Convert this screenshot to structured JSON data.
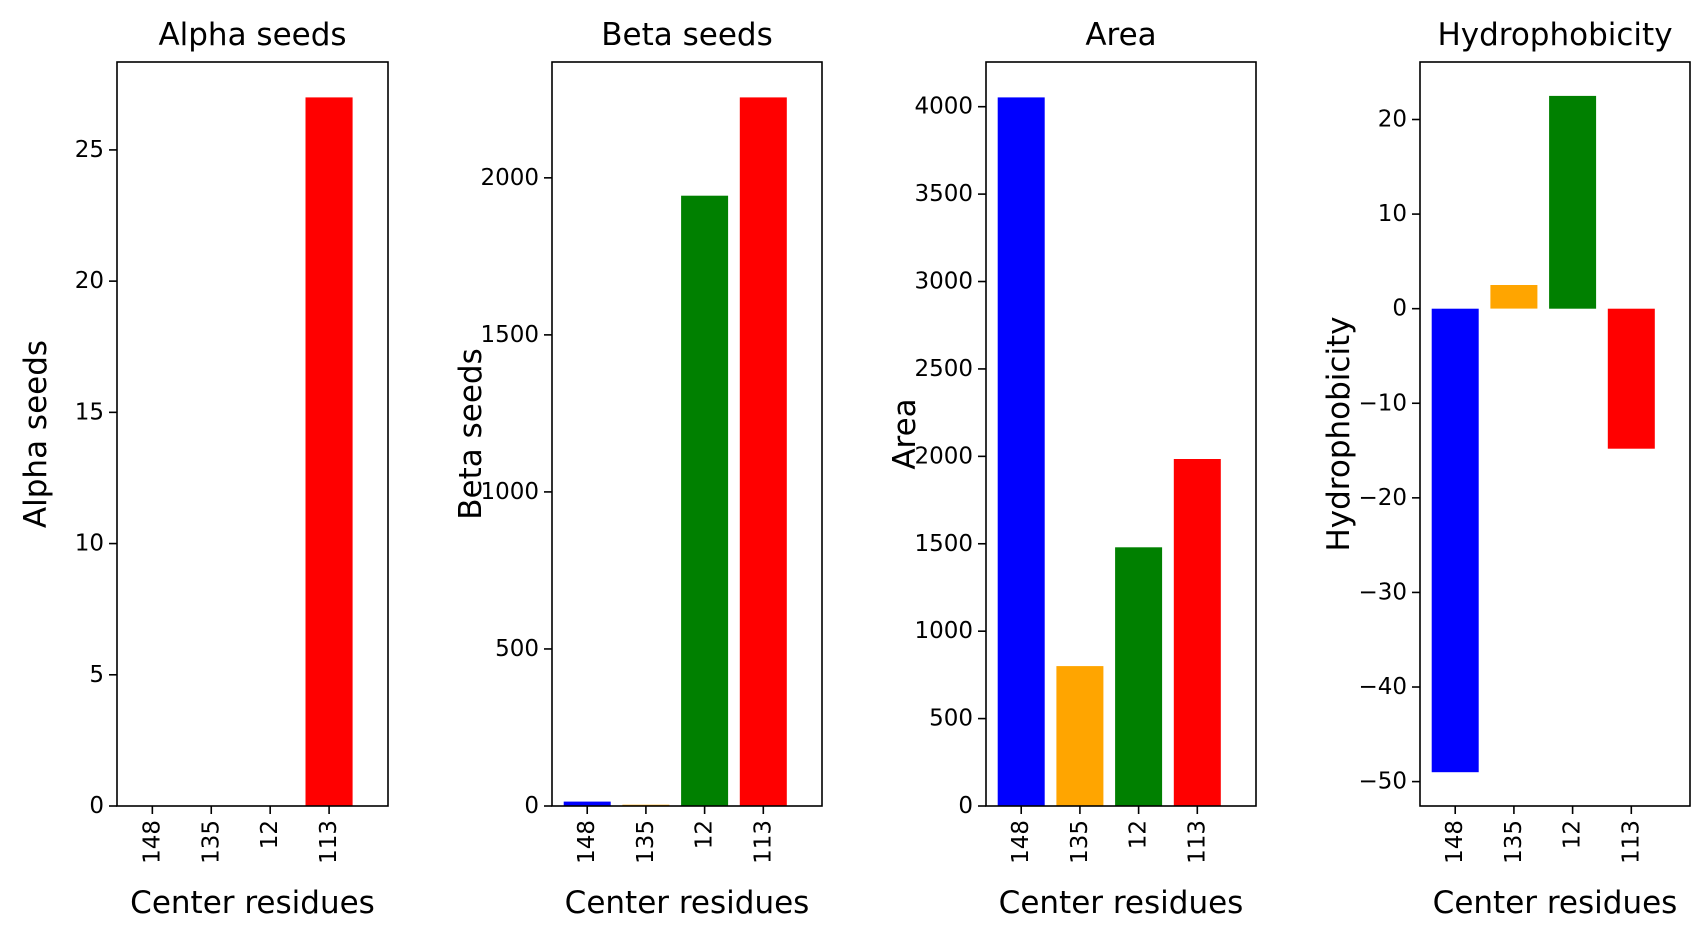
{
  "figure": {
    "background": "#ffffff"
  },
  "chart_data": [
    {
      "type": "bar",
      "title": "Alpha seeds",
      "xlabel": "Center residues",
      "ylabel": "Alpha seeds",
      "categories": [
        "148",
        "135",
        "12",
        "113"
      ],
      "values": [
        0,
        0,
        0,
        27
      ],
      "colors": [
        "#0000ff",
        "#ffa500",
        "#008000",
        "#ff0000"
      ],
      "ylim": [
        0,
        28.35
      ],
      "yticks": [
        0,
        5,
        10,
        15,
        20,
        25
      ],
      "ytick_labels": [
        "0",
        "5",
        "10",
        "15",
        "20",
        "25"
      ],
      "grid": false,
      "legend": "none"
    },
    {
      "type": "bar",
      "title": "Beta seeds",
      "xlabel": "Center residues",
      "ylabel": "Beta seeds",
      "categories": [
        "148",
        "135",
        "12",
        "113"
      ],
      "values": [
        14,
        4,
        1943,
        2256
      ],
      "colors": [
        "#0000ff",
        "#ffa500",
        "#008000",
        "#ff0000"
      ],
      "ylim": [
        0,
        2368.8
      ],
      "yticks": [
        0,
        500,
        1000,
        1500,
        2000
      ],
      "ytick_labels": [
        "0",
        "500",
        "1000",
        "1500",
        "2000"
      ],
      "grid": false,
      "legend": "none"
    },
    {
      "type": "bar",
      "title": "Area",
      "xlabel": "Center residues",
      "ylabel": "Area",
      "categories": [
        "148",
        "135",
        "12",
        "113"
      ],
      "values": [
        4053,
        800,
        1480,
        1985
      ],
      "colors": [
        "#0000ff",
        "#ffa500",
        "#008000",
        "#ff0000"
      ],
      "ylim": [
        0,
        4255.65
      ],
      "yticks": [
        0,
        500,
        1000,
        1500,
        2000,
        2500,
        3000,
        3500,
        4000
      ],
      "ytick_labels": [
        "0",
        "500",
        "1000",
        "1500",
        "2000",
        "2500",
        "3000",
        "3500",
        "4000"
      ],
      "grid": false,
      "legend": "none"
    },
    {
      "type": "bar",
      "title": "Hydrophobicity",
      "xlabel": "Center residues",
      "ylabel": "Hydrophobicity",
      "categories": [
        "148",
        "135",
        "12",
        "113"
      ],
      "values": [
        -49,
        2.5,
        22.5,
        -14.8
      ],
      "colors": [
        "#0000ff",
        "#ffa500",
        "#008000",
        "#ff0000"
      ],
      "ylim": [
        -52.58,
        26.08
      ],
      "yticks": [
        -50,
        -40,
        -30,
        -20,
        -10,
        0,
        10,
        20
      ],
      "ytick_labels": [
        "−50",
        "−40",
        "−30",
        "−20",
        "−10",
        "0",
        "10",
        "20"
      ],
      "grid": false,
      "legend": "none"
    }
  ]
}
